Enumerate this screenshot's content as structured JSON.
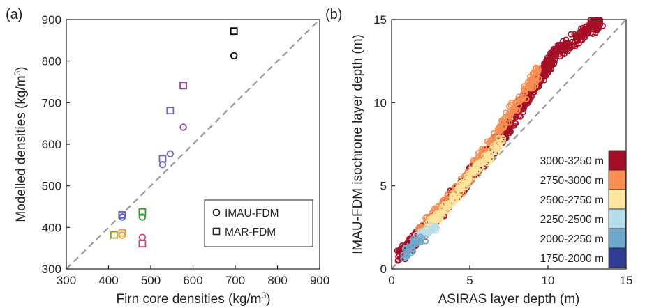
{
  "chart_data": [
    {
      "type": "scatter",
      "panel_label": "(a)",
      "xlabel": "Firn core densities (kg/m",
      "xlabel_sup": "3",
      "xlabel_end": ")",
      "ylabel": "Modelled densities (kg/m",
      "ylabel_sup": "3",
      "ylabel_end": ")",
      "xlim": [
        300,
        900
      ],
      "ylim": [
        300,
        900
      ],
      "xticks": [
        "300",
        "400",
        "500",
        "600",
        "700",
        "800",
        "900"
      ],
      "yticks": [
        "300",
        "400",
        "500",
        "600",
        "700",
        "800",
        "900"
      ],
      "one_to_one_line": true,
      "legend": {
        "placement": "bottom-right",
        "entries": [
          "IMAU-FDM",
          "MAR-FDM"
        ]
      },
      "series": [
        {
          "name": "IMAU-FDM",
          "marker": "circle",
          "points": [
            {
              "x": 697,
              "y": 813,
              "color": "#000000"
            },
            {
              "x": 577,
              "y": 641,
              "color": "#9b3fa7"
            },
            {
              "x": 546,
              "y": 577,
              "color": "#6a6ac8"
            },
            {
              "x": 528,
              "y": 551,
              "color": "#6a6ac8"
            },
            {
              "x": 432,
              "y": 425,
              "color": "#5a5ad8"
            },
            {
              "x": 480,
              "y": 425,
              "color": "#2f9e2f"
            },
            {
              "x": 432,
              "y": 381,
              "color": "#e89a2a"
            },
            {
              "x": 480,
              "y": 376,
              "color": "#d6407a"
            }
          ]
        },
        {
          "name": "MAR-FDM",
          "marker": "square",
          "points": [
            {
              "x": 697,
              "y": 872,
              "color": "#000000"
            },
            {
              "x": 577,
              "y": 741,
              "color": "#9b3fa7"
            },
            {
              "x": 546,
              "y": 681,
              "color": "#6a6ac8"
            },
            {
              "x": 528,
              "y": 565,
              "color": "#6a6ac8"
            },
            {
              "x": 432,
              "y": 430,
              "color": "#5a5ad8"
            },
            {
              "x": 480,
              "y": 437,
              "color": "#2f9e2f"
            },
            {
              "x": 413,
              "y": 382,
              "color": "#9aa018"
            },
            {
              "x": 432,
              "y": 387,
              "color": "#e89a2a"
            },
            {
              "x": 480,
              "y": 361,
              "color": "#d6407a"
            }
          ]
        }
      ]
    },
    {
      "type": "scatter",
      "panel_label": "(b)",
      "xlabel": "ASIRAS layer depth (m)",
      "ylabel": "IMAU-FDM isochrone layer depth (m)",
      "xlim": [
        0,
        15
      ],
      "ylim": [
        0,
        15
      ],
      "xticks": [
        "0",
        "5",
        "10",
        "15"
      ],
      "yticks": [
        "0",
        "5",
        "10",
        "15"
      ],
      "one_to_one_line": true,
      "legend": {
        "placement": "bottom-right"
      },
      "series": [
        {
          "name": "3000-3250 m",
          "color": "#a50f26",
          "segments": [
            [
              0.5,
              0.7,
              3.0,
              3.3
            ],
            [
              3.0,
              3.3,
              7.0,
              7.9
            ],
            [
              7.0,
              7.9,
              10.5,
              13.0
            ],
            [
              10.5,
              13.0,
              13.5,
              15.0
            ]
          ],
          "band": [
            0.3,
            0.8
          ]
        },
        {
          "name": "2750-3000 m",
          "color": "#f88e52",
          "segments": [
            [
              1.5,
              1.9,
              4.5,
              5.0
            ],
            [
              4.5,
              5.0,
              9.5,
              12.0
            ]
          ],
          "band": [
            0.1,
            0.5
          ]
        },
        {
          "name": "2500-2750 m",
          "color": "#fbe49c",
          "segments": [
            [
              2.0,
              2.1,
              5.0,
              5.5
            ],
            [
              5.0,
              5.5,
              7.0,
              7.6
            ]
          ],
          "band": [
            0.1,
            0.4
          ]
        },
        {
          "name": "2250-2500 m",
          "color": "#b6deea",
          "segments": [
            [
              1.5,
              1.8,
              2.9,
              2.5
            ]
          ],
          "band": [
            0.0,
            0.3
          ]
        },
        {
          "name": "2000-2250 m",
          "color": "#6fa8cd",
          "segments": [
            [
              0.7,
              0.8,
              2.1,
              2.0
            ]
          ],
          "band": [
            0.0,
            0.3
          ]
        },
        {
          "name": "1750-2000 m",
          "color": "#313c96",
          "segments": [],
          "band": [
            0.0,
            0.0
          ]
        }
      ]
    }
  ]
}
